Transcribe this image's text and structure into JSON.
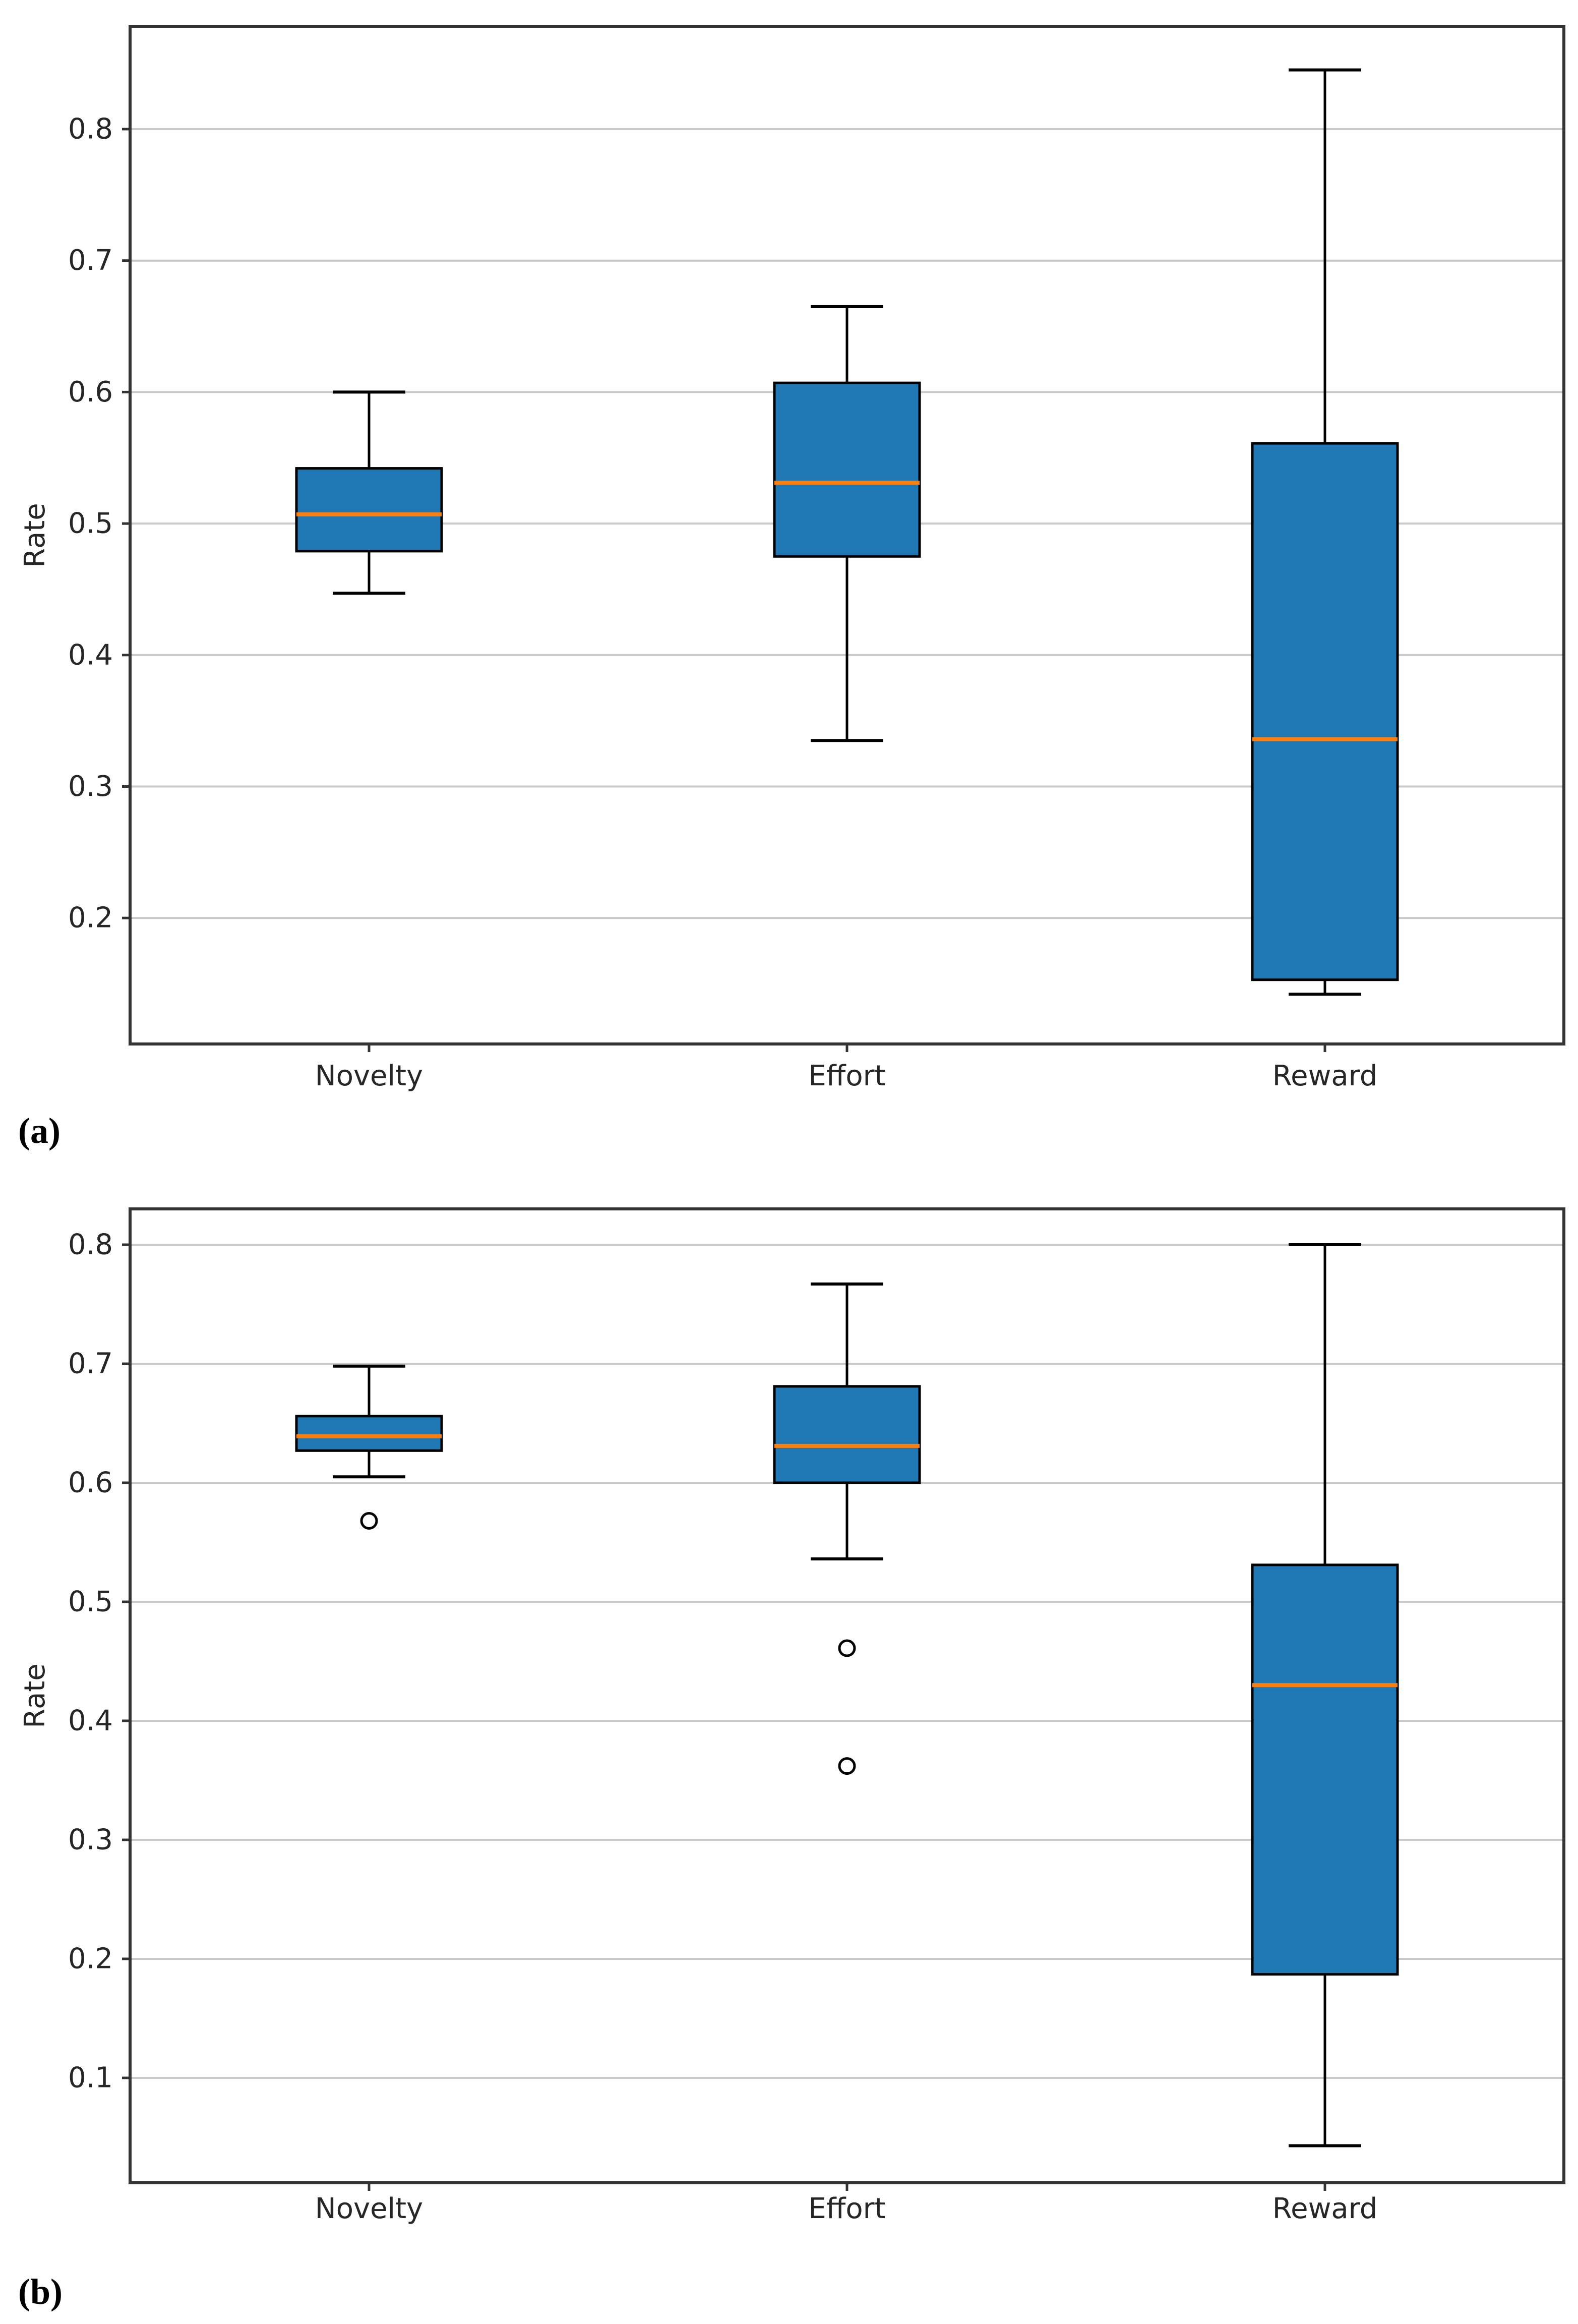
{
  "figure": {
    "background": "#ffffff",
    "panel_a_label": "(a)",
    "panel_b_label": "(b)"
  },
  "colors": {
    "box_fill": "#1f77b4",
    "box_edge": "#000000",
    "median_line": "#ff7f0e",
    "whisker": "#000000",
    "outlier_edge": "#000000",
    "gridline": "#c9c9c9",
    "spine": "#333333",
    "tick_text": "#262626"
  },
  "chart_data": [
    {
      "type": "boxplot",
      "panel_label": "(a)",
      "title": "",
      "xlabel": "",
      "ylabel": "Rate",
      "categories": [
        "Novelty",
        "Effort",
        "Reward"
      ],
      "yticks": [
        0.8,
        0.7,
        0.6,
        0.5,
        0.4,
        0.3,
        0.2
      ],
      "ylim": [
        0.104,
        0.878
      ],
      "grid": "horizontal",
      "legend": "none",
      "boxes": [
        {
          "category": "Novelty",
          "whisker_low": 0.447,
          "q1": 0.479,
          "median": 0.507,
          "q3": 0.542,
          "whisker_high": 0.6,
          "outliers": []
        },
        {
          "category": "Effort",
          "whisker_low": 0.335,
          "q1": 0.475,
          "median": 0.531,
          "q3": 0.607,
          "whisker_high": 0.665,
          "outliers": []
        },
        {
          "category": "Reward",
          "whisker_low": 0.142,
          "q1": 0.153,
          "median": 0.336,
          "q3": 0.561,
          "whisker_high": 0.845,
          "outliers": []
        }
      ]
    },
    {
      "type": "boxplot",
      "panel_label": "(b)",
      "title": "",
      "xlabel": "",
      "ylabel": "Rate",
      "categories": [
        "Novelty",
        "Effort",
        "Reward"
      ],
      "yticks": [
        0.8,
        0.7,
        0.6,
        0.5,
        0.4,
        0.3,
        0.2,
        0.1
      ],
      "ylim": [
        0.012,
        0.83
      ],
      "grid": "horizontal",
      "legend": "none",
      "boxes": [
        {
          "category": "Novelty",
          "whisker_low": 0.605,
          "q1": 0.627,
          "median": 0.639,
          "q3": 0.656,
          "whisker_high": 0.698,
          "outliers": [
            0.568
          ]
        },
        {
          "category": "Effort",
          "whisker_low": 0.536,
          "q1": 0.6,
          "median": 0.631,
          "q3": 0.681,
          "whisker_high": 0.767,
          "outliers": [
            0.461,
            0.362
          ]
        },
        {
          "category": "Reward",
          "whisker_low": 0.043,
          "q1": 0.187,
          "median": 0.43,
          "q3": 0.531,
          "whisker_high": 0.8,
          "outliers": []
        }
      ]
    }
  ]
}
